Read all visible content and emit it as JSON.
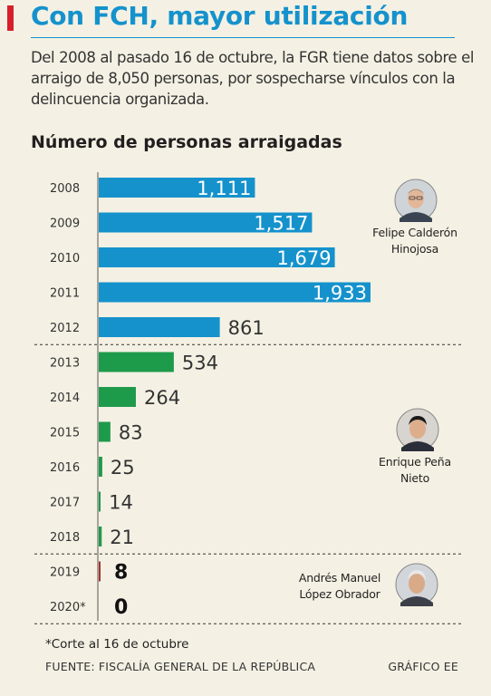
{
  "header": {
    "title": "Con FCH, mayor utilización",
    "subtitle": "Del 2008 al pasado 16 de octubre, la FGR tiene datos sobre el arraigo de 8,050 personas, por sospecharse vínculos con la delincuencia organizada."
  },
  "chart_data": {
    "type": "bar",
    "orientation": "horizontal",
    "title": "Número de personas arraigadas",
    "categories": [
      "2008",
      "2009",
      "2010",
      "2011",
      "2012",
      "2013",
      "2014",
      "2015",
      "2016",
      "2017",
      "2018",
      "2019",
      "2020*"
    ],
    "values": [
      1111,
      1517,
      1679,
      1933,
      861,
      534,
      264,
      83,
      25,
      14,
      21,
      8,
      0
    ],
    "value_labels": [
      "1,111",
      "1,517",
      "1,679",
      "1,933",
      "861",
      "534",
      "264",
      "83",
      "25",
      "14",
      "21",
      "8",
      "0"
    ],
    "groups": [
      {
        "name": "Felipe Calderón Hinojosa",
        "range": [
          0,
          4
        ],
        "color": "#1592cc"
      },
      {
        "name": "Enrique Peña Nieto",
        "range": [
          5,
          10
        ],
        "color": "#1e9a4b"
      },
      {
        "name": "Andrés Manuel López Obrador",
        "range": [
          11,
          12
        ],
        "color": "#a8332e"
      }
    ],
    "legend": "none",
    "grid": false
  },
  "presidents": [
    {
      "line1": "Felipe Calderón",
      "line2": "Hinojosa",
      "icon": "portrait-icon"
    },
    {
      "line1": "Enrique Peña",
      "line2": "Nieto",
      "icon": "portrait-icon"
    },
    {
      "line1": "Andrés Manuel",
      "line2": "López Obrador",
      "icon": "portrait-icon"
    }
  ],
  "footer": {
    "note": "*Corte al 16 de octubre",
    "source": "FUENTE: FISCALÍA GENERAL DE LA REPÚBLICA",
    "credit": "GRÁFICO EE"
  }
}
